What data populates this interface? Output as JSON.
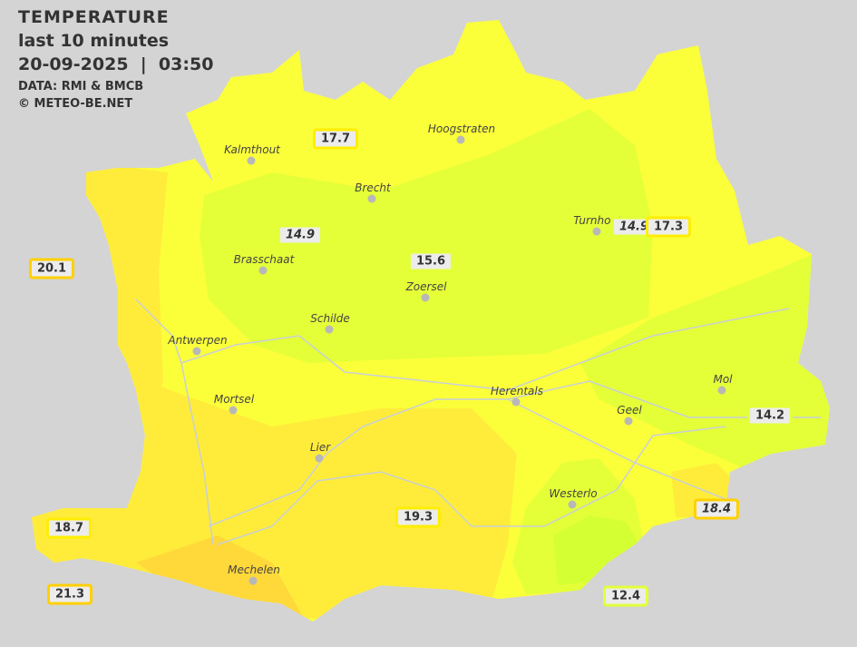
{
  "header": {
    "title": "TEMPERATURE",
    "subtitle": "last 10 minutes",
    "datetime": "20-09-2025  |  03:50",
    "source": "DATA: RMI & BMCB",
    "copyright": "© METEO-BE.NET"
  },
  "colors": {
    "background": "#d4d4d4",
    "warm_yellow": "#fbff3a",
    "lime": "#e4ff38",
    "orange_yellow": "#ffec3a",
    "gold": "#ffd83a",
    "cold_lime": "#d4ff33"
  },
  "cities": [
    {
      "name": "Kalmthout"
    },
    {
      "name": "Hoogstraten"
    },
    {
      "name": "Brecht"
    },
    {
      "name": "Turnhout"
    },
    {
      "name": "Brasschaat"
    },
    {
      "name": "Zoersel"
    },
    {
      "name": "Schilde"
    },
    {
      "name": "Antwerpen"
    },
    {
      "name": "Mortsel"
    },
    {
      "name": "Herentals"
    },
    {
      "name": "Mol"
    },
    {
      "name": "Geel"
    },
    {
      "name": "Lier"
    },
    {
      "name": "Westerlo"
    },
    {
      "name": "Mechelen"
    }
  ],
  "stations": [
    {
      "value": "17.7",
      "italic": false,
      "border": "#ffee00"
    },
    {
      "value": "14.9",
      "italic": true,
      "border": "#e4ff38"
    },
    {
      "value": "15.6",
      "italic": false,
      "border": "#e4ff38"
    },
    {
      "value": "14.9",
      "italic": true,
      "border": "#e4ff38"
    },
    {
      "value": "17.3",
      "italic": false,
      "border": "#ffee00"
    },
    {
      "value": "20.1",
      "italic": false,
      "border": "#ffd000"
    },
    {
      "value": "14.2",
      "italic": false,
      "border": "#e4ff38"
    },
    {
      "value": "18.4",
      "italic": true,
      "border": "#ffd000"
    },
    {
      "value": "19.3",
      "italic": false,
      "border": "#ffee00"
    },
    {
      "value": "18.7",
      "italic": false,
      "border": "#ffee00"
    },
    {
      "value": "21.3",
      "italic": false,
      "border": "#ffd000"
    },
    {
      "value": "12.4",
      "italic": false,
      "border": "#e4ff38"
    }
  ]
}
